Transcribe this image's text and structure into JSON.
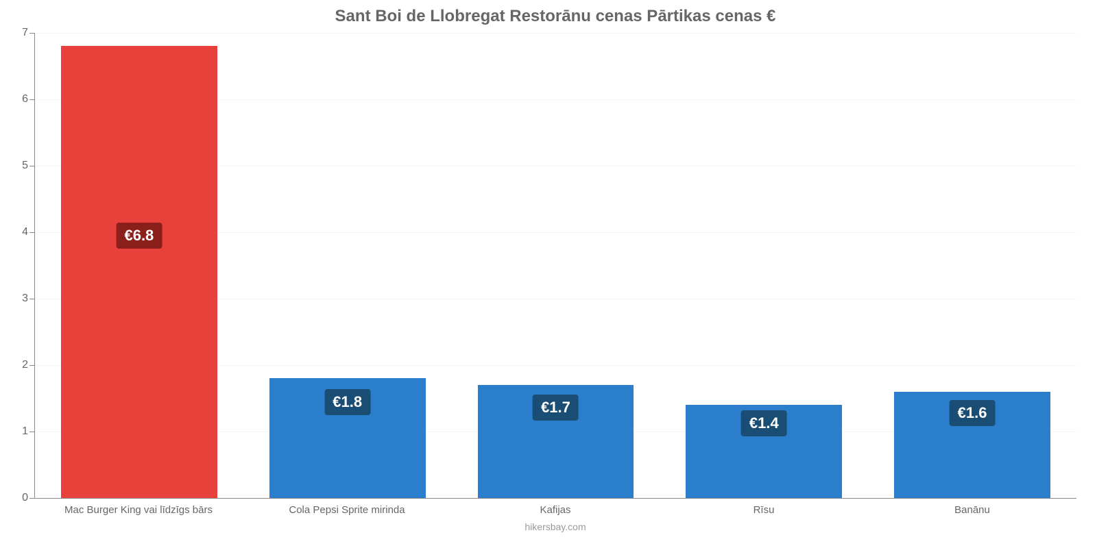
{
  "chart": {
    "type": "bar",
    "title": "Sant Boi de Llobregat Restorānu cenas Pārtikas cenas €",
    "title_color": "#666666",
    "title_fontsize": 24,
    "background_color": "#ffffff",
    "grid_color": "#f5f5f5",
    "axis_color": "#888888",
    "tick_label_color": "#666666",
    "tick_label_fontsize": 16,
    "x_label_fontsize": 15,
    "ylim": [
      0,
      7
    ],
    "ytick_step": 1,
    "bar_width_pct": 75,
    "categories": [
      "Mac Burger King vai līdzīgs bārs",
      "Cola Pepsi Sprite mirinda",
      "Kafijas",
      "Rīsu",
      "Banānu"
    ],
    "values": [
      6.8,
      1.8,
      1.7,
      1.4,
      1.6
    ],
    "display_values": [
      "€6.8",
      "€1.8",
      "€1.7",
      "€1.4",
      "€1.6"
    ],
    "bar_colors": [
      "#e8403a",
      "#2a7ecc",
      "#2a7ecc",
      "#2a7ecc",
      "#2a7ecc"
    ],
    "badge_colors": [
      "#8b1f1b",
      "#1a4d73",
      "#1a4d73",
      "#1a4d73",
      "#1a4d73"
    ],
    "badge_text_color": "#ffffff",
    "badge_fontsize": 22,
    "attribution": "hikersbay.com",
    "attribution_color": "#999999",
    "attribution_fontsize": 14
  }
}
